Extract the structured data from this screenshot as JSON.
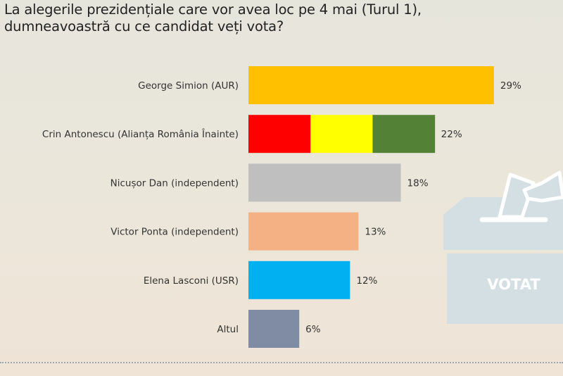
{
  "title_lines": [
    "La alegerile prezidențiale care vor avea loc pe 4 mai (Turul 1),",
    "dumneavoastră cu ce candidat veți vota?"
  ],
  "ballot_box": {
    "label": "VOTAT",
    "icon": "ballot-box-icon"
  },
  "chart_data": {
    "type": "bar",
    "orientation": "horizontal",
    "categories": [
      "George Simion (AUR)",
      "Crin Antonescu (Alianța România Înainte)",
      "Nicușor Dan (independent)",
      "Victor Ponta (independent)",
      "Elena Lasconi (USR)",
      "Altul"
    ],
    "values": [
      29,
      22,
      18,
      13,
      12,
      6
    ],
    "value_labels": [
      "29%",
      "22%",
      "18%",
      "13%",
      "12%",
      "6%"
    ],
    "colors": [
      [
        "#ffc000"
      ],
      [
        "#ff0000",
        "#ffff00",
        "#538135"
      ],
      [
        "#bfbfbf"
      ],
      [
        "#f4b183"
      ],
      [
        "#00b0f0"
      ],
      [
        "#7f8ca3"
      ]
    ],
    "unit": "%",
    "grid": false
  }
}
